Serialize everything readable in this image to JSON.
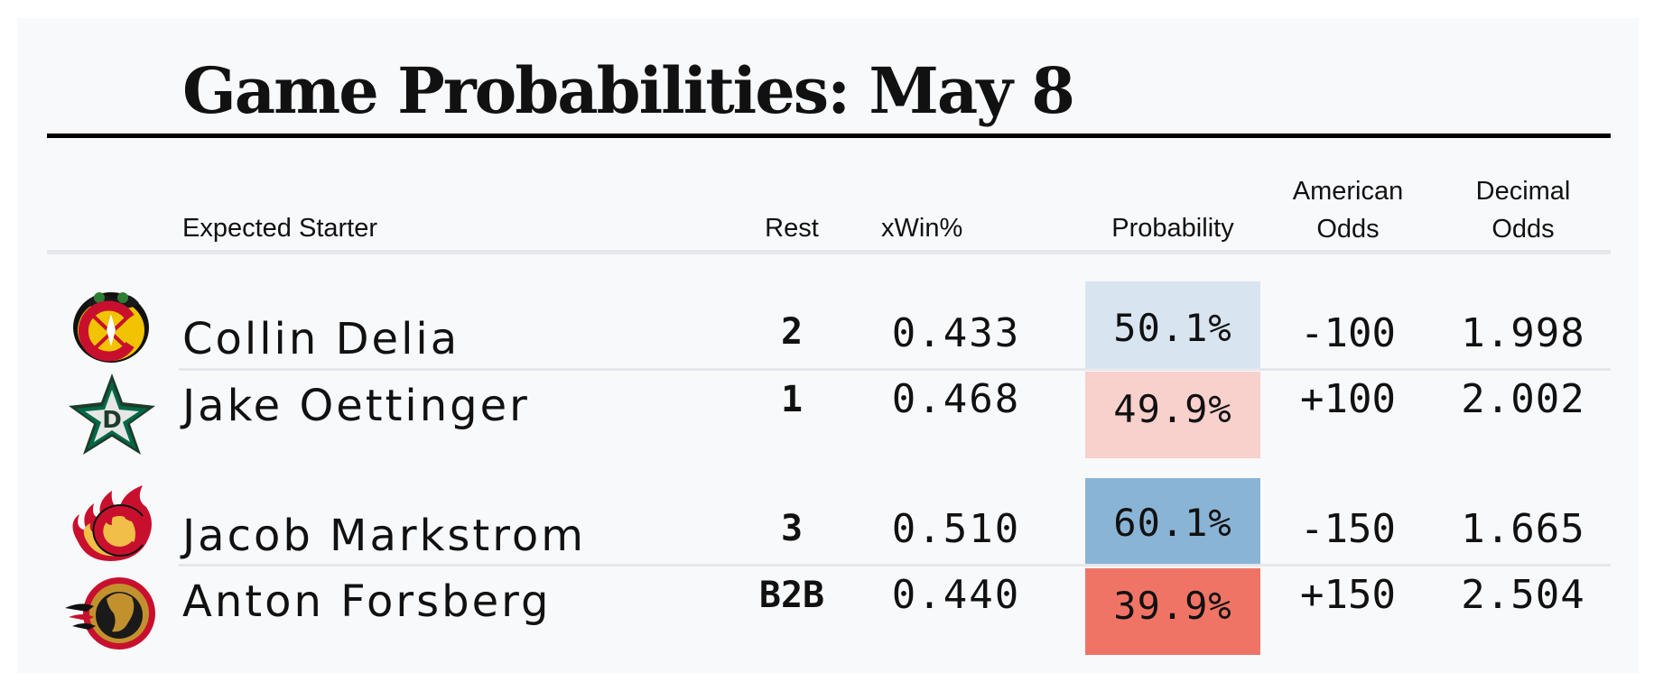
{
  "title": "Game Probabilities: May 8",
  "headers": {
    "starter": "Expected Starter",
    "rest": "Rest",
    "xwin": "xWin%",
    "probability": "Probability",
    "american_line1": "American",
    "american_line2": "Odds",
    "decimal_line1": "Decimal",
    "decimal_line2": "Odds"
  },
  "games": [
    {
      "home": {
        "team_logo": "chicago-blackhawks-logo-icon",
        "starter": "Collin Delia",
        "rest": "2",
        "xwin": "0.433",
        "probability": "50.1%",
        "probability_value": 0.501,
        "american": "-100",
        "decimal": "1.998",
        "prob_color": "#d8e5f0"
      },
      "away": {
        "team_logo": "dallas-stars-logo-icon",
        "starter": "Jake Oettinger",
        "rest": "1",
        "xwin": "0.468",
        "probability": "49.9%",
        "probability_value": 0.499,
        "american": "+100",
        "decimal": "2.002",
        "prob_color": "#f8d0cc"
      }
    },
    {
      "home": {
        "team_logo": "calgary-flames-logo-icon",
        "starter": "Jacob Markstrom",
        "rest": "3",
        "xwin": "0.510",
        "probability": "60.1%",
        "probability_value": 0.601,
        "american": "-150",
        "decimal": "1.665",
        "prob_color": "#8ab4d6"
      },
      "away": {
        "team_logo": "ottawa-senators-logo-icon",
        "starter": "Anton Forsberg",
        "rest": "B2B",
        "xwin": "0.440",
        "probability": "39.9%",
        "probability_value": 0.399,
        "american": "+150",
        "decimal": "2.504",
        "prob_color": "#f07465"
      }
    }
  ]
}
